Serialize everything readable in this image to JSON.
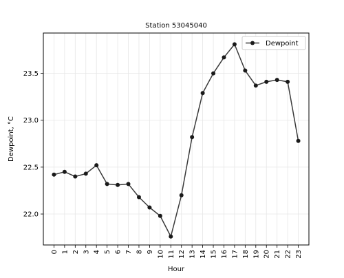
{
  "chart_data": {
    "type": "line",
    "title": "Station 53045040",
    "xlabel": "Hour",
    "ylabel": "Dewpoint, °C",
    "x": [
      0,
      1,
      2,
      3,
      4,
      5,
      6,
      7,
      8,
      9,
      10,
      11,
      12,
      13,
      14,
      15,
      16,
      17,
      18,
      19,
      20,
      21,
      22,
      23
    ],
    "x_tick_labels": [
      "0",
      "1",
      "2",
      "3",
      "4",
      "5",
      "6",
      "7",
      "8",
      "9",
      "10",
      "11",
      "12",
      "13",
      "14",
      "15",
      "16",
      "17",
      "18",
      "19",
      "20",
      "21",
      "22",
      "23"
    ],
    "y_ticks": [
      22.0,
      22.5,
      23.0,
      23.5
    ],
    "y_tick_labels": [
      "22.0",
      "22.5",
      "23.0",
      "23.5"
    ],
    "xlim": [
      -1,
      24
    ],
    "ylim": [
      21.67,
      23.93
    ],
    "grid": true,
    "legend_position": "top-right",
    "series": [
      {
        "name": "Dewpoint",
        "color": "#1a1a1a",
        "marker": "circle",
        "values": [
          22.42,
          22.45,
          22.4,
          22.43,
          22.52,
          22.32,
          22.31,
          22.32,
          22.18,
          22.07,
          21.98,
          21.76,
          22.2,
          22.82,
          23.29,
          23.5,
          23.67,
          23.81,
          23.53,
          23.37,
          23.41,
          23.43,
          23.41,
          22.78
        ]
      }
    ]
  }
}
